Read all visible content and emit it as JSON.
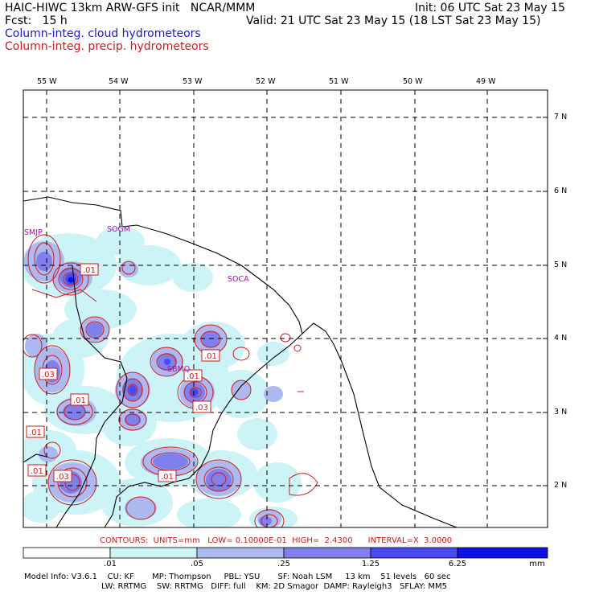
{
  "header": {
    "title": "HAIC-HIWC 13km ARW-GFS init   NCAR/MMM",
    "init": "Init: 06 UTC Sat 23 May 15",
    "fcst": "Fcst:   15 h",
    "valid": "Valid: 21 UTC Sat 23 May 15 (18 LST Sat 23 May 15)",
    "field1": "Column-integ. cloud hydrometeors",
    "field2": "Column-integ. precip. hydrometeors",
    "field1_color": "#1a1acc",
    "field2_color": "#d01a1a"
  },
  "map": {
    "lon_labels": [
      "55 W",
      "54 W",
      "53 W",
      "52 W",
      "51 W",
      "50 W",
      "49 W"
    ],
    "lat_labels": [
      "7 N",
      "6 N",
      "5 N",
      "4 N",
      "3 N",
      "2 N"
    ],
    "station_labels": [
      "SMJP",
      "SOGM",
      "SOCA",
      "SBMQ"
    ],
    "station_color": "#c000c0",
    "contour_labels": [
      ".01",
      ".01",
      ".03",
      ".01",
      ".03",
      ".01",
      ".01",
      ".01",
      ".03",
      ".01"
    ]
  },
  "contour_info": "CONTOURS:  UNITS=mm   LOW= 0.10000E-01  HIGH=  2.4300      INTERVAL=X  3.0000",
  "colorbar": {
    "labels": [
      ".01",
      ".05",
      ".25",
      "1.25",
      "6.25"
    ],
    "unit": "mm",
    "colors": [
      "#ffffff",
      "#ccf3f6",
      "#aeb9ef",
      "#8080ec",
      "#4a4af2",
      "#1010e6"
    ]
  },
  "model_info": {
    "line1": "Model Info: V3.6.1    CU: KF       MP: Thompson     PBL: YSU       SF: Noah LSM     13 km    51 levels   60 sec",
    "line2": "LW: RRTMG    SW: RRTMG   DIFF: full    KM: 2D Smagor  DAMP: Rayleigh3   SFLAY: MM5"
  }
}
